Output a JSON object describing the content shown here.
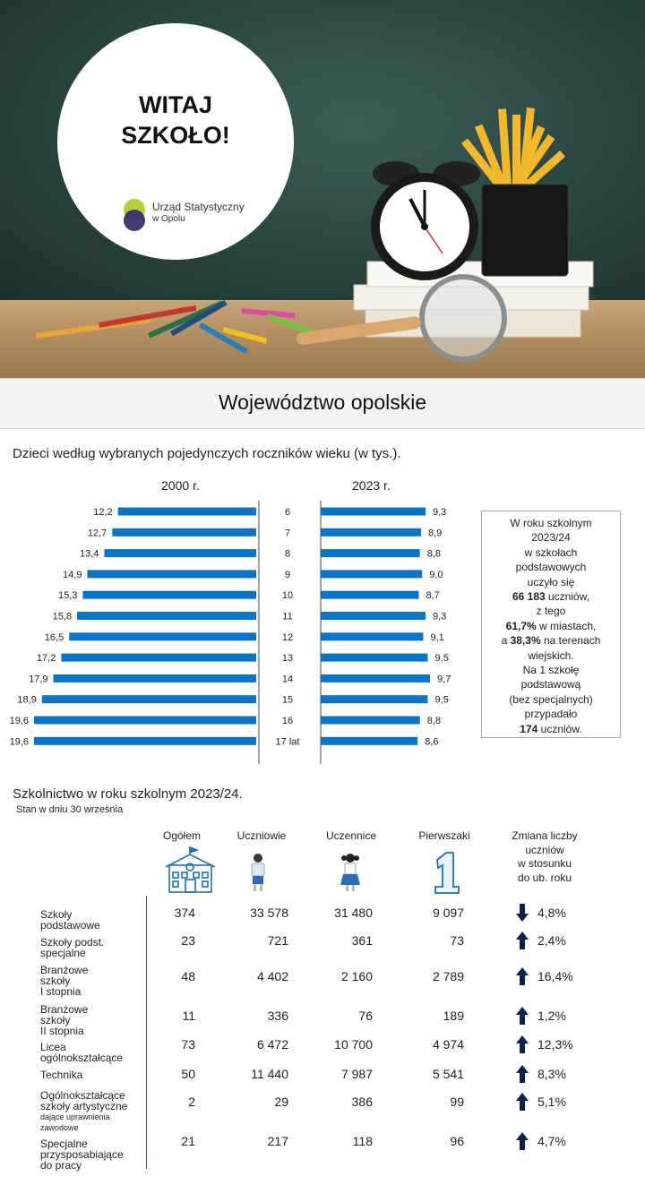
{
  "hero": {
    "title_line1": "WITAJ",
    "title_line2": "SZKOŁO!",
    "logo_line1": "Urząd Statystyczny",
    "logo_line2": "w Opolu"
  },
  "banner": {
    "title": "Województwo opolskie"
  },
  "section1": {
    "title": "Dzieci według wybranych pojedynczych roczników wieku (w tys.)."
  },
  "chart_data": {
    "type": "bar",
    "title": "Dzieci według wybranych pojedynczych roczników wieku (w tys.).",
    "categories": [
      "6",
      "7",
      "8",
      "9",
      "10",
      "11",
      "12",
      "13",
      "14",
      "15",
      "16",
      "17 lat"
    ],
    "series": [
      {
        "name": "2000 r.",
        "values": [
          12.2,
          12.7,
          13.4,
          14.9,
          15.3,
          15.8,
          16.5,
          17.2,
          17.9,
          18.9,
          19.6,
          19.6
        ],
        "labels": [
          "12,2",
          "12,7",
          "13,4",
          "14,9",
          "15,3",
          "15,8",
          "16,5",
          "17,2",
          "17,9",
          "18,9",
          "19,6",
          "19,6"
        ]
      },
      {
        "name": "2023 r.",
        "values": [
          9.3,
          8.9,
          8.8,
          9.0,
          8.7,
          9.3,
          9.1,
          9.5,
          9.7,
          9.5,
          8.8,
          8.6
        ],
        "labels": [
          "9,3",
          "8,9",
          "8,8",
          "9,0",
          "8,7",
          "9,3",
          "9,1",
          "9,5",
          "9,7",
          "9,5",
          "8,8",
          "8,6"
        ]
      }
    ],
    "bar_color": "#0b74c7"
  },
  "info_box": {
    "l1": "W roku szkolnym",
    "l2": "2023/24",
    "l3": "w szkołach",
    "l4": "podstawowych",
    "l5": "uczyło się",
    "l6b": "66 183",
    "l6": " uczniów,",
    "l7": "z tego",
    "l8b": "61,7%",
    "l8": " w miastach,",
    "l9a": "a ",
    "l9b": "38,3%",
    "l9": " na terenach",
    "l10": "wiejskich.",
    "l11": "Na 1 szkołę",
    "l12": "podstawową",
    "l13": "(bez specjalnych)",
    "l14": "przypadało",
    "l15b": "174",
    "l15": " uczniów."
  },
  "section2": {
    "title": "Szkolnictwo w roku szkolnym 2023/24.",
    "subtitle": "Stan w dniu 30 września"
  },
  "table": {
    "headers": {
      "ogolem": "Ogółem",
      "uczniowie": "Uczniowie",
      "uczennice": "Uczennice",
      "pierwszaki": "Pierwszaki",
      "zmiana_1": "Zmiana liczby",
      "zmiana_2": "uczniów",
      "zmiana_3": "w stosunku",
      "zmiana_4": "do ub. roku"
    },
    "rows": [
      {
        "label_1": "Szkoły",
        "label_2": "podstawowe",
        "label_3": "",
        "ogolem": "374",
        "uczniowie": "33 578",
        "uczennice": "31 480",
        "pierwszaki": "9 097",
        "zmiana": "4,8%",
        "direction": "down"
      },
      {
        "label_1": "Szkoły podst.",
        "label_2": "specjalne",
        "label_3": "",
        "ogolem": "23",
        "uczniowie": "721",
        "uczennice": "361",
        "pierwszaki": "73",
        "zmiana": "2,4%",
        "direction": "up"
      },
      {
        "label_1": "Branżowe",
        "label_2": "szkoły",
        "label_3": "I stopnia",
        "ogolem": "48",
        "uczniowie": "4 402",
        "uczennice": "2 160",
        "pierwszaki": "2 789",
        "zmiana": "16,4%",
        "direction": "up"
      },
      {
        "label_1": "Branżowe",
        "label_2": "szkoły",
        "label_3": "II stopnia",
        "ogolem": "11",
        "uczniowie": "336",
        "uczennice": "76",
        "pierwszaki": "189",
        "zmiana": "1,2%",
        "direction": "up"
      },
      {
        "label_1": "Licea",
        "label_2": "ogólnokształcące",
        "label_3": "",
        "ogolem": "73",
        "uczniowie": "6 472",
        "uczennice": "10 700",
        "pierwszaki": "4 974",
        "zmiana": "12,3%",
        "direction": "up"
      },
      {
        "label_1": "Technika",
        "label_2": "",
        "label_3": "",
        "ogolem": "50",
        "uczniowie": "11 440",
        "uczennice": "7 987",
        "pierwszaki": "5 541",
        "zmiana": "8,3%",
        "direction": "up"
      },
      {
        "label_1": "Ogólnokształcące",
        "label_2": "szkoły artystyczne",
        "label_3": "dające uprawnienia",
        "label_4": "zawodowe",
        "ogolem": "2",
        "uczniowie": "29",
        "uczennice": "386",
        "pierwszaki": "99",
        "zmiana": "5,1%",
        "direction": "up"
      },
      {
        "label_1": "Specjalne",
        "label_2": "przysposabiające",
        "label_3": "do pracy",
        "ogolem": "21",
        "uczniowie": "217",
        "uczennice": "118",
        "pierwszaki": "96",
        "zmiana": "4,7%",
        "direction": "up"
      }
    ],
    "arrow_color": "#0d1f4d"
  }
}
